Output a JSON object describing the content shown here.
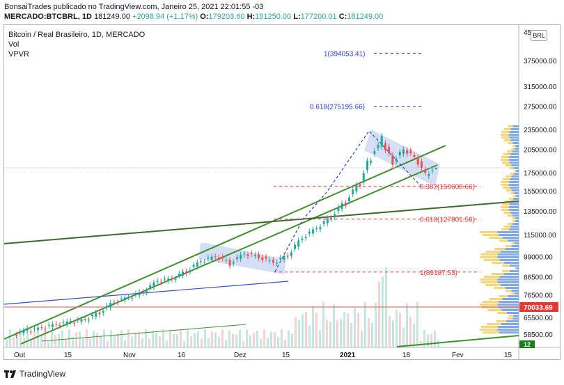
{
  "header": {
    "publish_line": "BonsaiTrades publicado no TradingView.com, Janeiro 25, 2021 22:01:55 -03",
    "symbol": "MERCADO:BTCBRL, 1D",
    "last": "181249.00",
    "change": "+2098.94 (+1.17%)",
    "o_label": "O:",
    "o_value": "179203.60",
    "h_label": "H:",
    "h_value": "181250.00",
    "l_label": "L:",
    "l_value": "177200.01",
    "c_label": "C:",
    "c_value": "181249.00"
  },
  "legend": {
    "title": "Bitcoin / Real Brasileiro, 1D, MERCADO",
    "vol": "Vol",
    "vpvr": "VPVR"
  },
  "currency_button": "BRL",
  "footer": {
    "brand": "TradingView"
  },
  "colors": {
    "up": "#26a69a",
    "down": "#ef5350",
    "channel_line": "#3f8f2c",
    "long_line": "#3d6b2b",
    "blue_line": "#3b4bc8",
    "support_line": "#e57373",
    "fib_red": "#e53935",
    "fib_blue": "#2e3fd6",
    "channel_fill": "#b7c9ee",
    "vpvr_up": "#7fa8e8",
    "vpvr_down": "#f5d77a",
    "price_tag_bg": "#e53935"
  },
  "chart_data": {
    "type": "candlestick",
    "title": "Bitcoin / Real Brasileiro, 1D, MERCADO",
    "x_tick_labels": [
      "Out",
      "15",
      "Nov",
      "16",
      "Dez",
      "15",
      "2021",
      "18",
      "Fev",
      "15"
    ],
    "y_tick_labels": [
      "45",
      "375000.00",
      "315000.00",
      "275000.00",
      "235000.00",
      "205000.00",
      "175000.00",
      "155000.00",
      "135000.00",
      "115000.00",
      "99000.00",
      "86500.00",
      "76500.00",
      "65500.00",
      "58500.00"
    ],
    "y_scale": "log",
    "candles": [
      [
        "2020-10-01",
        58500,
        61000
      ],
      [
        "2020-10-05",
        59800,
        61200
      ],
      [
        "2020-10-09",
        61000,
        62500
      ],
      [
        "2020-10-13",
        62500,
        64000
      ],
      [
        "2020-10-17",
        63500,
        64800
      ],
      [
        "2020-10-21",
        64500,
        67000
      ],
      [
        "2020-10-25",
        68000,
        72500
      ],
      [
        "2020-10-29",
        73000,
        75500
      ],
      [
        "2020-11-02",
        75000,
        77500
      ],
      [
        "2020-11-06",
        78000,
        84000
      ],
      [
        "2020-11-10",
        84000,
        85000
      ],
      [
        "2020-11-14",
        85000,
        88500
      ],
      [
        "2020-11-18",
        90000,
        96000
      ],
      [
        "2020-11-22",
        96000,
        99000
      ],
      [
        "2020-11-26",
        99000,
        93000
      ],
      [
        "2020-11-30",
        95000,
        101000
      ],
      [
        "2020-12-04",
        101000,
        98000
      ],
      [
        "2020-12-08",
        99000,
        95000
      ],
      [
        "2020-12-12",
        95000,
        99000
      ],
      [
        "2020-12-16",
        100000,
        112000
      ],
      [
        "2020-12-20",
        113000,
        120000
      ],
      [
        "2020-12-24",
        120000,
        128000
      ],
      [
        "2020-12-28",
        130000,
        140000
      ],
      [
        "2021-01-01",
        145000,
        160000
      ],
      [
        "2021-01-05",
        165000,
        190000
      ],
      [
        "2021-01-08",
        200000,
        225000
      ],
      [
        "2021-01-11",
        215000,
        185000
      ],
      [
        "2021-01-14",
        190000,
        205000
      ],
      [
        "2021-01-17",
        205000,
        195000
      ],
      [
        "2021-01-20",
        195000,
        175000
      ],
      [
        "2021-01-23",
        172000,
        178000
      ],
      [
        "2021-01-25",
        179203.6,
        181249
      ]
    ],
    "fib_levels": [
      {
        "label": "1(394053.41)",
        "value": 394053.41
      },
      {
        "label": "0.618(275195.66)",
        "value": 275195.66
      },
      {
        "label": "0.382(159608.66)",
        "value": 159608.66
      },
      {
        "label": "0.618(127801.56)",
        "value": 127801.56
      },
      {
        "label": "1(89187.53)",
        "value": 89187.53
      }
    ],
    "price_tags": [
      {
        "label": "70033.69",
        "value": 70033.69
      },
      {
        "label": "12",
        "value": null
      }
    ],
    "grid": false,
    "legend": "top-left"
  }
}
